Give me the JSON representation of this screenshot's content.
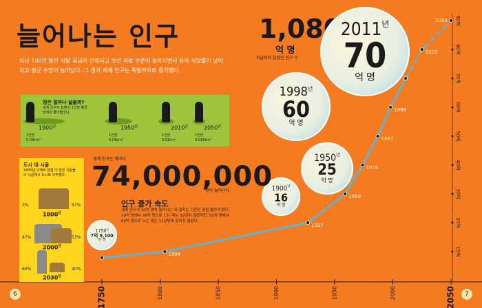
{
  "header": {
    "title": "늘어나는 인구",
    "intro": "지난 100년 동안 식량 공급이 안정되고 보건 의료 수준이 높아지면서 유아 사망률이 낮아지고 평균 수명이 늘어났다. 그 결과 세계 인구는 폭발적으로 증가했다."
  },
  "total": {
    "number": "1,080",
    "unit": "억 명",
    "caption": "지금까지 살았던 인구 수"
  },
  "bubbles": [
    {
      "year": "2011",
      "year_unit": "년",
      "number": "70",
      "unit": "억 명"
    },
    {
      "year": "1998",
      "year_unit": "년",
      "number": "60",
      "unit": "억 명"
    },
    {
      "year": "1950",
      "year_unit": "년",
      "number": "25",
      "unit": "억 명"
    },
    {
      "year": "1900",
      "year_unit": "년",
      "number": "16",
      "unit": "억 명"
    },
    {
      "year": "1750",
      "year_unit": "년",
      "number": "7억 9,100",
      "unit": "만 명"
    }
  ],
  "land": {
    "title": "땅은 얼마나 넓을까?",
    "text": "세계 인구가 늘면서 1인당 평균 면적은 줄어들었다.",
    "items": [
      {
        "year": "1900",
        "unit": "년",
        "label": "1인당",
        "area": "0.09km²"
      },
      {
        "year": "1950",
        "unit": "년",
        "label": "1인당",
        "area": "0.06km²"
      },
      {
        "year": "2010",
        "unit": "년",
        "label": "1인당",
        "area": "0.02km²"
      },
      {
        "year": "2050",
        "unit": "년",
        "label": "1인당",
        "area": "0.016km²"
      }
    ]
  },
  "urban": {
    "title": "도시 대 시골",
    "text": "1800년 이래로 점점 더 많은 사람들이 시골에서 도시로 이주했다.",
    "rows": [
      {
        "left": "3%",
        "right": "97%",
        "year": "1800",
        "unit": "년"
      },
      {
        "left": "47%",
        "right": "53%",
        "year": "2000",
        "unit": "년"
      },
      {
        "left": "60%",
        "right": "40%",
        "year": "2030",
        "unit": "년"
      }
    ]
  },
  "growth": {
    "pre": "세계 인구는 해마다",
    "number": "74,000,000",
    "post": "명씩 늘어난다."
  },
  "speed": {
    "title": "인구 증가 속도",
    "text": "세계 인구가 10억 명씩 늘어나는 데 걸리는 기간은 점점 짧아져 왔다. 20억 명에서 30억 명으로 느는 데는 32년이 걸렸지만, 50억 명에서 60억 명으로 느는 데는 11년밖에 걸리지 않았다."
  },
  "pages": [
    "6",
    "7"
  ],
  "chart_data": {
    "type": "line",
    "xlim": [
      1750,
      2050
    ],
    "xticks": [
      1750,
      1800,
      1850,
      1900,
      1950,
      2000,
      2050
    ],
    "ylim": [
      0,
      90
    ],
    "yticks": [
      {
        "value": 10,
        "label": "10억"
      },
      {
        "value": 20,
        "label": "20억"
      },
      {
        "value": 30,
        "label": "30억"
      },
      {
        "value": 40,
        "label": "40억"
      },
      {
        "value": 50,
        "label": "50억"
      },
      {
        "value": 60,
        "label": "60억"
      },
      {
        "value": 70,
        "label": "70억"
      },
      {
        "value": 80,
        "label": "80억"
      },
      {
        "value": 90,
        "label": "90억"
      }
    ],
    "series": [
      {
        "color": "#5fb4d6",
        "dashed": false,
        "x": [
          1750,
          1804,
          1927,
          1959,
          1974,
          1987,
          1998,
          2011
        ],
        "values": [
          7.91,
          10,
          20,
          30,
          40,
          50,
          60,
          70
        ]
      },
      {
        "color": "#5fb4d6",
        "dashed": true,
        "x": [
          2011,
          2025,
          2050
        ],
        "values": [
          70,
          80,
          90
        ]
      }
    ]
  }
}
